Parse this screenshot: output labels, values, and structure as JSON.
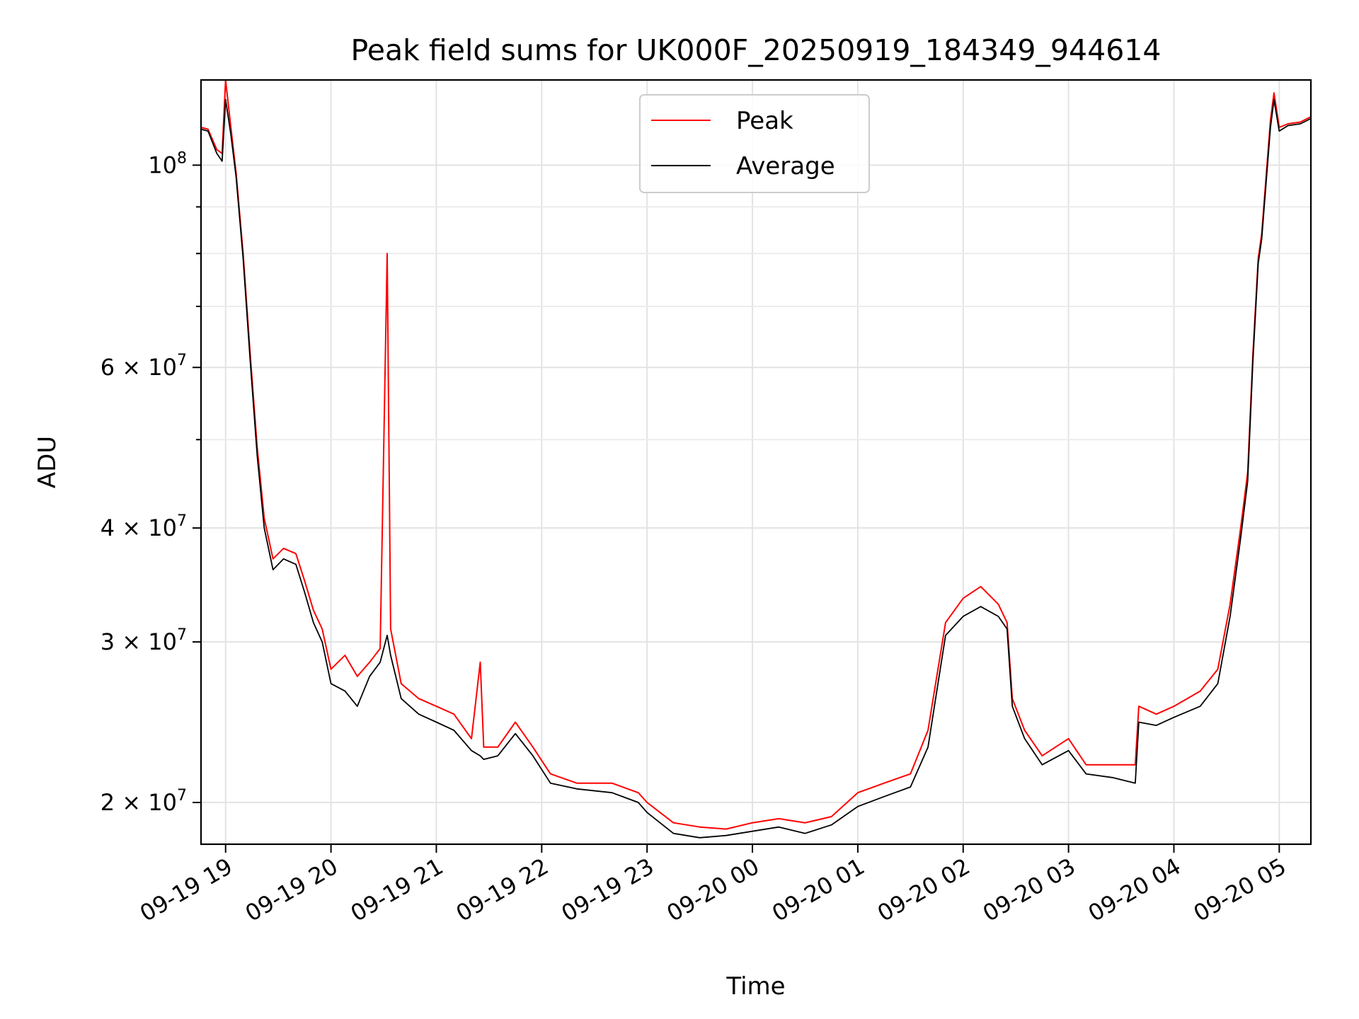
{
  "chart_data": {
    "type": "line",
    "title": "Peak field sums for UK000F_20250919_184349_944614",
    "xlabel": "Time",
    "ylabel": "ADU",
    "y_scale": "log",
    "x_range": [
      "2025-09-19T18:46",
      "2025-09-20T05:18"
    ],
    "ylim": [
      18000000,
      124000000
    ],
    "grid": true,
    "legend_position": "upper-center",
    "x_ticks": [
      {
        "value": "2025-09-19T19:00",
        "label": "09-19 19"
      },
      {
        "value": "2025-09-19T20:00",
        "label": "09-19 20"
      },
      {
        "value": "2025-09-19T21:00",
        "label": "09-19 21"
      },
      {
        "value": "2025-09-19T22:00",
        "label": "09-19 22"
      },
      {
        "value": "2025-09-19T23:00",
        "label": "09-19 23"
      },
      {
        "value": "2025-09-20T00:00",
        "label": "09-20 00"
      },
      {
        "value": "2025-09-20T01:00",
        "label": "09-20 01"
      },
      {
        "value": "2025-09-20T02:00",
        "label": "09-20 02"
      },
      {
        "value": "2025-09-20T03:00",
        "label": "09-20 03"
      },
      {
        "value": "2025-09-20T04:00",
        "label": "09-20 04"
      },
      {
        "value": "2025-09-20T05:00",
        "label": "09-20 05"
      }
    ],
    "y_ticks": [
      {
        "value": 20000000,
        "label": "2 × 10",
        "exp": "7"
      },
      {
        "value": 30000000,
        "label": "3 × 10",
        "exp": "7"
      },
      {
        "value": 40000000,
        "label": "4 × 10",
        "exp": "7"
      },
      {
        "value": 60000000,
        "label": "6 × 10",
        "exp": "7"
      },
      {
        "value": 100000000,
        "label": "10",
        "exp": "8"
      }
    ],
    "y_minor_ticks": [
      50000000,
      70000000,
      80000000,
      90000000
    ],
    "series": [
      {
        "name": "Peak",
        "color": "#ff0000",
        "points": [
          [
            "2025-09-19T18:46",
            110000000
          ],
          [
            "2025-09-19T18:50",
            109500000
          ],
          [
            "2025-09-19T18:55",
            104000000
          ],
          [
            "2025-09-19T18:58",
            103000000
          ],
          [
            "2025-09-19T19:00",
            124000000
          ],
          [
            "2025-09-19T19:03",
            110000000
          ],
          [
            "2025-09-19T19:06",
            98000000
          ],
          [
            "2025-09-19T19:10",
            80000000
          ],
          [
            "2025-09-19T19:14",
            62000000
          ],
          [
            "2025-09-19T19:18",
            49000000
          ],
          [
            "2025-09-19T19:22",
            41000000
          ],
          [
            "2025-09-19T19:27",
            37000000
          ],
          [
            "2025-09-19T19:33",
            38000000
          ],
          [
            "2025-09-19T19:40",
            37500000
          ],
          [
            "2025-09-19T19:45",
            35000000
          ],
          [
            "2025-09-19T19:50",
            32500000
          ],
          [
            "2025-09-19T19:55",
            31000000
          ],
          [
            "2025-09-19T20:00",
            28000000
          ],
          [
            "2025-09-19T20:08",
            29000000
          ],
          [
            "2025-09-19T20:15",
            27500000
          ],
          [
            "2025-09-19T20:22",
            28500000
          ],
          [
            "2025-09-19T20:28",
            29500000
          ],
          [
            "2025-09-19T20:32",
            80000000
          ],
          [
            "2025-09-19T20:34",
            31000000
          ],
          [
            "2025-09-19T20:40",
            27000000
          ],
          [
            "2025-09-19T20:50",
            26000000
          ],
          [
            "2025-09-19T21:00",
            25500000
          ],
          [
            "2025-09-19T21:10",
            25000000
          ],
          [
            "2025-09-19T21:20",
            23500000
          ],
          [
            "2025-09-19T21:25",
            28500000
          ],
          [
            "2025-09-19T21:27",
            23000000
          ],
          [
            "2025-09-19T21:35",
            23000000
          ],
          [
            "2025-09-19T21:45",
            24500000
          ],
          [
            "2025-09-19T21:55",
            23000000
          ],
          [
            "2025-09-19T22:05",
            21500000
          ],
          [
            "2025-09-19T22:20",
            21000000
          ],
          [
            "2025-09-19T22:40",
            21000000
          ],
          [
            "2025-09-19T22:55",
            20500000
          ],
          [
            "2025-09-19T23:00",
            20000000
          ],
          [
            "2025-09-19T23:15",
            19000000
          ],
          [
            "2025-09-19T23:30",
            18800000
          ],
          [
            "2025-09-19T23:45",
            18700000
          ],
          [
            "2025-09-20T00:00",
            19000000
          ],
          [
            "2025-09-20T00:15",
            19200000
          ],
          [
            "2025-09-20T00:30",
            19000000
          ],
          [
            "2025-09-20T00:45",
            19300000
          ],
          [
            "2025-09-20T01:00",
            20500000
          ],
          [
            "2025-09-20T01:15",
            21000000
          ],
          [
            "2025-09-20T01:30",
            21500000
          ],
          [
            "2025-09-20T01:40",
            24000000
          ],
          [
            "2025-09-20T01:45",
            27500000
          ],
          [
            "2025-09-20T01:50",
            31500000
          ],
          [
            "2025-09-20T02:00",
            33500000
          ],
          [
            "2025-09-20T02:10",
            34500000
          ],
          [
            "2025-09-20T02:20",
            33000000
          ],
          [
            "2025-09-20T02:25",
            31500000
          ],
          [
            "2025-09-20T02:28",
            26000000
          ],
          [
            "2025-09-20T02:35",
            24000000
          ],
          [
            "2025-09-20T02:45",
            22500000
          ],
          [
            "2025-09-20T03:00",
            23500000
          ],
          [
            "2025-09-20T03:10",
            22000000
          ],
          [
            "2025-09-20T03:25",
            22000000
          ],
          [
            "2025-09-20T03:38",
            22000000
          ],
          [
            "2025-09-20T03:40",
            25500000
          ],
          [
            "2025-09-20T03:50",
            25000000
          ],
          [
            "2025-09-20T04:00",
            25500000
          ],
          [
            "2025-09-20T04:15",
            26500000
          ],
          [
            "2025-09-20T04:25",
            28000000
          ],
          [
            "2025-09-20T04:32",
            33000000
          ],
          [
            "2025-09-20T04:38",
            40000000
          ],
          [
            "2025-09-20T04:42",
            46000000
          ],
          [
            "2025-09-20T04:45",
            62000000
          ],
          [
            "2025-09-20T04:48",
            79000000
          ],
          [
            "2025-09-20T04:50",
            84000000
          ],
          [
            "2025-09-20T04:55",
            112000000
          ],
          [
            "2025-09-20T04:57",
            120000000
          ],
          [
            "2025-09-20T05:00",
            110000000
          ],
          [
            "2025-09-20T05:05",
            111000000
          ],
          [
            "2025-09-20T05:12",
            111500000
          ],
          [
            "2025-09-20T05:18",
            113000000
          ]
        ]
      },
      {
        "name": "Average",
        "color": "#000000",
        "points": [
          [
            "2025-09-19T18:46",
            109500000
          ],
          [
            "2025-09-19T18:50",
            109000000
          ],
          [
            "2025-09-19T18:55",
            103000000
          ],
          [
            "2025-09-19T18:58",
            101000000
          ],
          [
            "2025-09-19T19:00",
            118000000
          ],
          [
            "2025-09-19T19:03",
            108000000
          ],
          [
            "2025-09-19T19:06",
            97000000
          ],
          [
            "2025-09-19T19:10",
            79000000
          ],
          [
            "2025-09-19T19:14",
            61000000
          ],
          [
            "2025-09-19T19:18",
            48000000
          ],
          [
            "2025-09-19T19:22",
            40000000
          ],
          [
            "2025-09-19T19:27",
            36000000
          ],
          [
            "2025-09-19T19:33",
            37000000
          ],
          [
            "2025-09-19T19:40",
            36500000
          ],
          [
            "2025-09-19T19:45",
            34000000
          ],
          [
            "2025-09-19T19:50",
            31500000
          ],
          [
            "2025-09-19T19:55",
            30000000
          ],
          [
            "2025-09-19T20:00",
            27000000
          ],
          [
            "2025-09-19T20:08",
            26500000
          ],
          [
            "2025-09-19T20:15",
            25500000
          ],
          [
            "2025-09-19T20:22",
            27500000
          ],
          [
            "2025-09-19T20:28",
            28500000
          ],
          [
            "2025-09-19T20:32",
            30500000
          ],
          [
            "2025-09-19T20:34",
            29000000
          ],
          [
            "2025-09-19T20:40",
            26000000
          ],
          [
            "2025-09-19T20:50",
            25000000
          ],
          [
            "2025-09-19T21:00",
            24500000
          ],
          [
            "2025-09-19T21:10",
            24000000
          ],
          [
            "2025-09-19T21:20",
            22800000
          ],
          [
            "2025-09-19T21:25",
            22500000
          ],
          [
            "2025-09-19T21:27",
            22300000
          ],
          [
            "2025-09-19T21:35",
            22500000
          ],
          [
            "2025-09-19T21:45",
            23800000
          ],
          [
            "2025-09-19T21:55",
            22500000
          ],
          [
            "2025-09-19T22:05",
            21000000
          ],
          [
            "2025-09-19T22:20",
            20700000
          ],
          [
            "2025-09-19T22:40",
            20500000
          ],
          [
            "2025-09-19T22:55",
            20000000
          ],
          [
            "2025-09-19T23:00",
            19500000
          ],
          [
            "2025-09-19T23:15",
            18500000
          ],
          [
            "2025-09-19T23:30",
            18300000
          ],
          [
            "2025-09-19T23:45",
            18400000
          ],
          [
            "2025-09-20T00:00",
            18600000
          ],
          [
            "2025-09-20T00:15",
            18800000
          ],
          [
            "2025-09-20T00:30",
            18500000
          ],
          [
            "2025-09-20T00:45",
            18900000
          ],
          [
            "2025-09-20T01:00",
            19800000
          ],
          [
            "2025-09-20T01:15",
            20300000
          ],
          [
            "2025-09-20T01:30",
            20800000
          ],
          [
            "2025-09-20T01:40",
            23000000
          ],
          [
            "2025-09-20T01:45",
            26500000
          ],
          [
            "2025-09-20T01:50",
            30500000
          ],
          [
            "2025-09-20T02:00",
            32000000
          ],
          [
            "2025-09-20T02:10",
            32800000
          ],
          [
            "2025-09-20T02:20",
            32000000
          ],
          [
            "2025-09-20T02:25",
            31000000
          ],
          [
            "2025-09-20T02:28",
            25500000
          ],
          [
            "2025-09-20T02:35",
            23500000
          ],
          [
            "2025-09-20T02:45",
            22000000
          ],
          [
            "2025-09-20T03:00",
            22800000
          ],
          [
            "2025-09-20T03:10",
            21500000
          ],
          [
            "2025-09-20T03:25",
            21300000
          ],
          [
            "2025-09-20T03:38",
            21000000
          ],
          [
            "2025-09-20T03:40",
            24500000
          ],
          [
            "2025-09-20T03:50",
            24300000
          ],
          [
            "2025-09-20T04:00",
            24800000
          ],
          [
            "2025-09-20T04:15",
            25500000
          ],
          [
            "2025-09-20T04:25",
            27000000
          ],
          [
            "2025-09-20T04:32",
            32000000
          ],
          [
            "2025-09-20T04:38",
            39000000
          ],
          [
            "2025-09-20T04:42",
            45000000
          ],
          [
            "2025-09-20T04:45",
            61000000
          ],
          [
            "2025-09-20T04:48",
            78000000
          ],
          [
            "2025-09-20T04:50",
            83000000
          ],
          [
            "2025-09-20T04:55",
            110000000
          ],
          [
            "2025-09-20T04:57",
            118000000
          ],
          [
            "2025-09-20T05:00",
            109000000
          ],
          [
            "2025-09-20T05:05",
            110500000
          ],
          [
            "2025-09-20T05:12",
            111000000
          ],
          [
            "2025-09-20T05:18",
            112500000
          ]
        ]
      }
    ]
  }
}
